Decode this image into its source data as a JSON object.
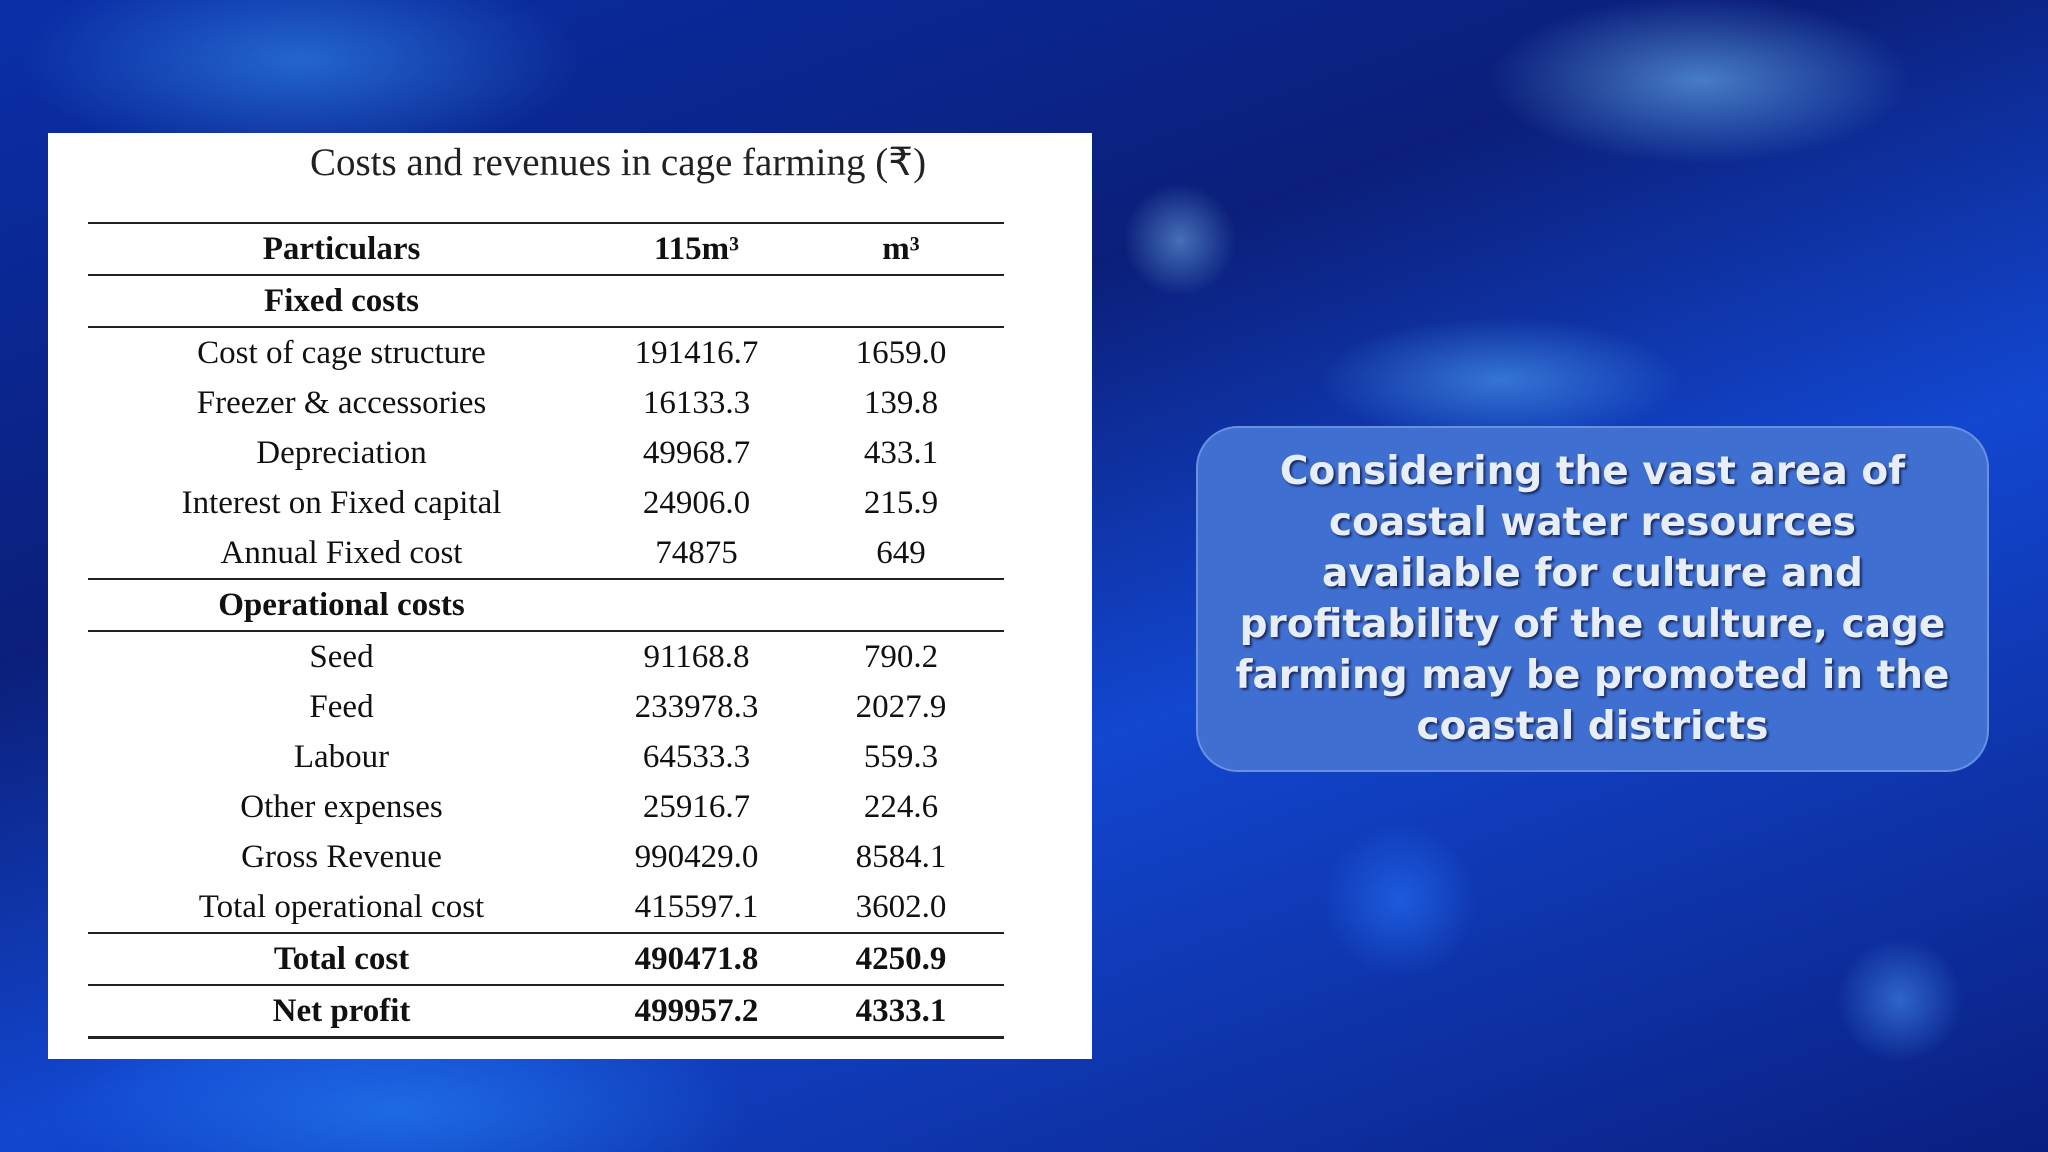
{
  "header": {
    "title": "Costs and revenues in cage farming (₹)"
  },
  "table": {
    "columns": [
      "Particulars",
      "115m³",
      "m³"
    ],
    "rows": [
      [
        "Fixed costs"
      ],
      [
        "Cost of cage structure",
        "191416.7",
        "1659.0"
      ],
      [
        "Freezer & accessories",
        "16133.3",
        "139.8"
      ],
      [
        "Depreciation",
        "49968.7",
        "433.1"
      ],
      [
        "Interest on Fixed capital",
        "24906.0",
        "215.9"
      ],
      [
        "Annual Fixed cost",
        "74875",
        "649"
      ],
      [
        "Operational costs"
      ],
      [
        "Seed",
        "91168.8",
        "790.2"
      ],
      [
        "Feed",
        "233978.3",
        "2027.9"
      ],
      [
        "Labour",
        "64533.3",
        "559.3"
      ],
      [
        "Other expenses",
        "25916.7",
        "224.6"
      ],
      [
        "Gross Revenue",
        "990429.0",
        "8584.1"
      ],
      [
        "Total operational cost",
        "415597.1",
        "3602.0"
      ],
      [
        "Total cost",
        "490471.8",
        "4250.9"
      ],
      [
        "Net profit",
        "499957.2",
        "4333.1"
      ]
    ]
  },
  "callout": {
    "text": "Considering the vast area of coastal water resources available for culture and profitability of the culture, cage farming may be promoted in the coastal districts"
  }
}
